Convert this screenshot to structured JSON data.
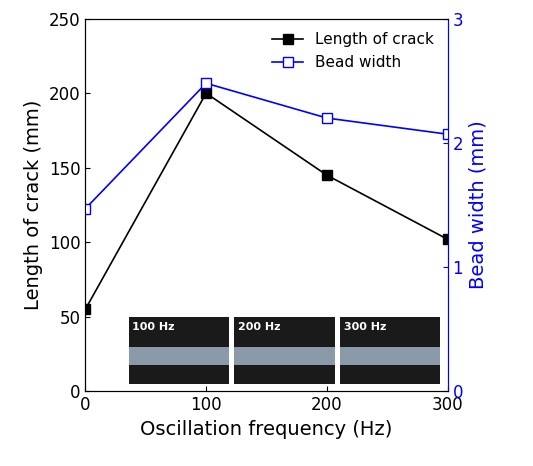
{
  "chart_data": {
    "type": "line",
    "x": [
      0,
      100,
      200,
      300
    ],
    "xlim": [
      0,
      300
    ],
    "xticks": [
      0,
      100,
      200,
      300
    ],
    "xlabel": "Oscillation frequency (Hz)",
    "ylabel": "Length of crack (mm)",
    "y2label": "Bead width (mm)",
    "ylim": [
      0,
      250
    ],
    "yticks": [
      0,
      50,
      100,
      150,
      200,
      250
    ],
    "y2lim": [
      0,
      3
    ],
    "y2ticks": [
      0,
      1,
      2,
      3
    ],
    "legend": "upper right",
    "series": [
      {
        "name": "Length of crack",
        "color": "#000000",
        "marker": "filled_square",
        "line_style": "solid",
        "values": [
          55,
          200,
          145,
          102
        ]
      },
      {
        "name": "Bead width",
        "color": "#0000ff",
        "marker": "open_square",
        "line_style": "solid",
        "axis": "y2",
        "values": [
          1.47,
          2.48,
          2.2,
          2.07
        ]
      }
    ],
    "annotations": [
      "100 Hz",
      "200 Hz",
      "300 Hz"
    ]
  }
}
